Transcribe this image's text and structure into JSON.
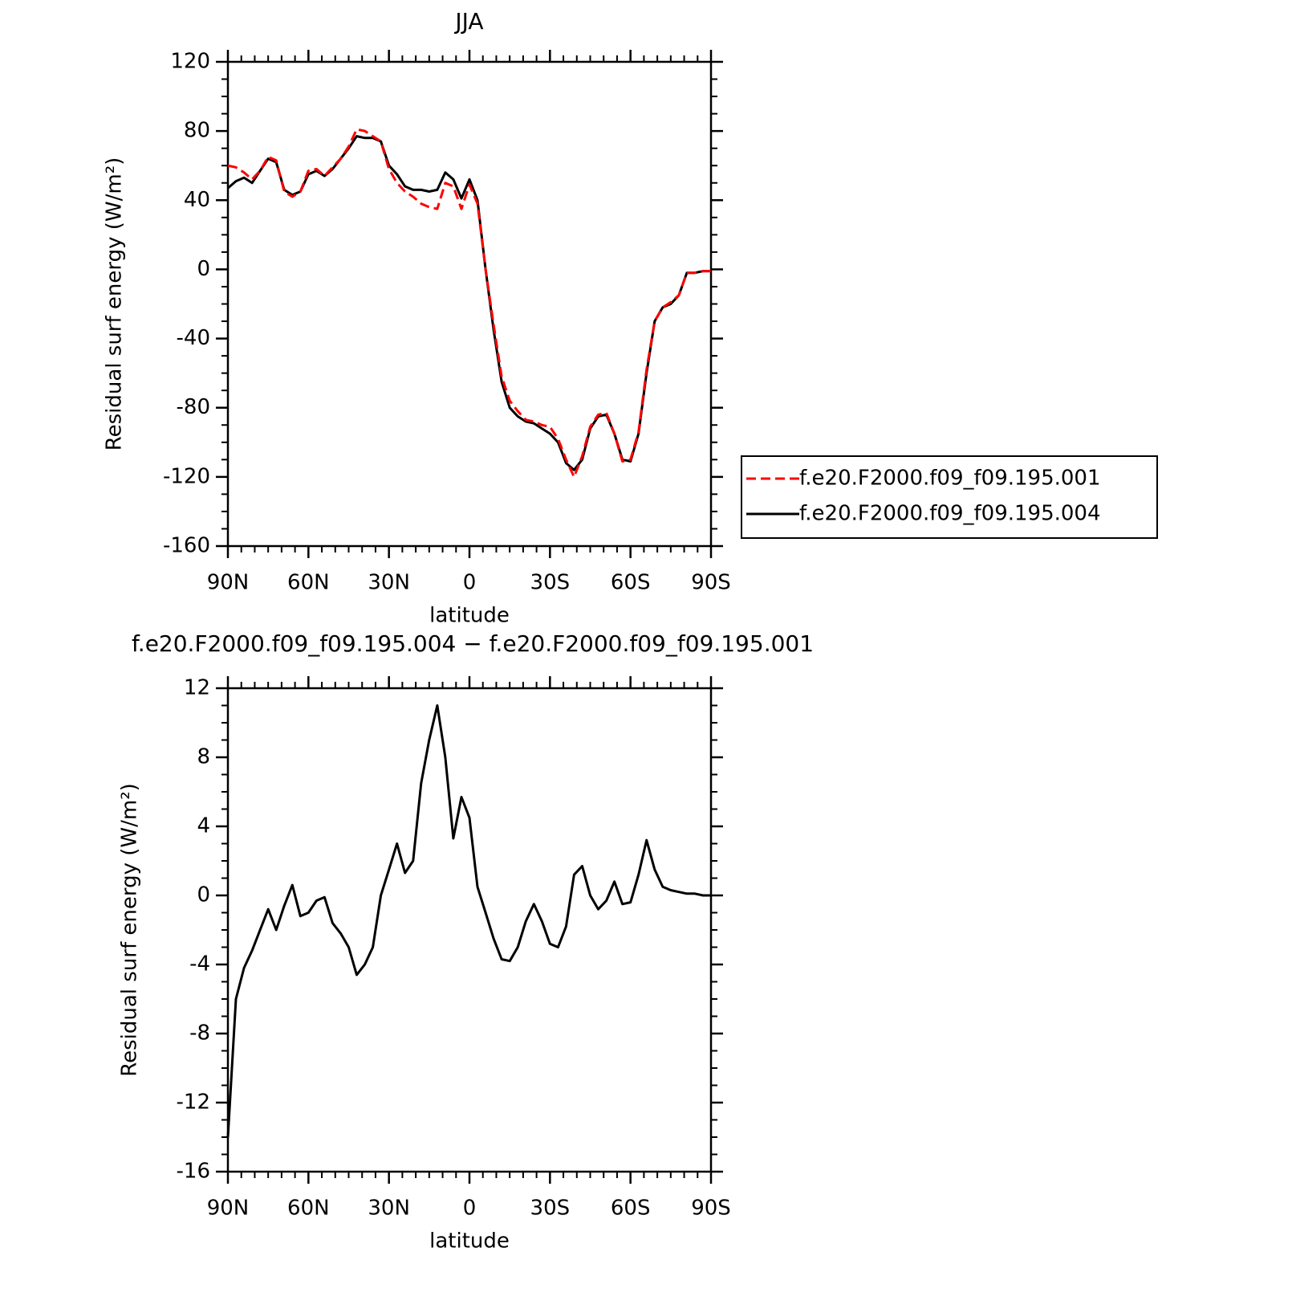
{
  "chart_data": [
    {
      "type": "line",
      "title": "JJA",
      "xlabel": "latitude",
      "ylabel": "Residual surf energy (W/m²)",
      "x": [
        90,
        87,
        84,
        81,
        78,
        75,
        72,
        69,
        66,
        63,
        60,
        57,
        54,
        51,
        48,
        45,
        42,
        39,
        36,
        33,
        30,
        27,
        24,
        21,
        18,
        15,
        12,
        9,
        6,
        3,
        0,
        -3,
        -6,
        -9,
        -12,
        -15,
        -18,
        -21,
        -24,
        -27,
        -30,
        -33,
        -36,
        -39,
        -42,
        -45,
        -48,
        -51,
        -54,
        -57,
        -60,
        -63,
        -66,
        -69,
        -72,
        -75,
        -78,
        -81,
        -84,
        -87,
        -90
      ],
      "xlim": [
        90,
        -90
      ],
      "xticks": [
        {
          "value": 90,
          "label": "90N"
        },
        {
          "value": 60,
          "label": "60N"
        },
        {
          "value": 30,
          "label": "30N"
        },
        0,
        {
          "value": -30,
          "label": "30S"
        },
        {
          "value": -60,
          "label": "60S"
        },
        {
          "value": -90,
          "label": "90S"
        }
      ],
      "ylim": [
        -160,
        120
      ],
      "yticks": [
        -160,
        -120,
        -80,
        -40,
        0,
        40,
        80,
        120
      ],
      "legend": "right",
      "series": [
        {
          "name": "f.e20.F2000.f09_f09.195.001",
          "color": "#ff0000",
          "line_style": "dashed",
          "values": [
            60,
            59,
            56,
            52,
            57,
            65,
            63,
            45,
            42,
            45,
            57,
            58,
            54,
            59,
            64,
            71,
            81,
            80,
            77,
            74,
            58,
            50,
            45,
            42,
            38,
            36,
            35,
            50,
            48,
            35,
            49,
            38,
            0,
            -32,
            -62,
            -76,
            -82,
            -87,
            -88,
            -90,
            -91,
            -98,
            -110,
            -120,
            -108,
            -91,
            -84,
            -83,
            -95,
            -111,
            -110,
            -94,
            -58,
            -30,
            -22,
            -19,
            -15,
            -2,
            -2,
            -1,
            -1
          ]
        },
        {
          "name": "f.e20.F2000.f09_f09.195.004",
          "color": "#000000",
          "line_style": "solid",
          "values": [
            47,
            51,
            53,
            50,
            57,
            64,
            62,
            46,
            43,
            45,
            55,
            57,
            54,
            58,
            64,
            70,
            77,
            76,
            76,
            74,
            60,
            55,
            48,
            46,
            46,
            45,
            46,
            56,
            52,
            41,
            52,
            40,
            0,
            -35,
            -65,
            -80,
            -85,
            -88,
            -89,
            -92,
            -95,
            -100,
            -112,
            -116,
            -110,
            -92,
            -85,
            -84,
            -95,
            -110,
            -111,
            -95,
            -60,
            -30,
            -22,
            -20,
            -15,
            -2,
            -2,
            -1,
            -1
          ]
        }
      ]
    },
    {
      "type": "line",
      "title": "f.e20.F2000.f09_f09.195.004 − f.e20.F2000.f09_f09.195.001",
      "xlabel": "latitude",
      "ylabel": "Residual surf energy (W/m²)",
      "x": [
        90,
        87,
        84,
        81,
        78,
        75,
        72,
        69,
        66,
        63,
        60,
        57,
        54,
        51,
        48,
        45,
        42,
        39,
        36,
        33,
        30,
        27,
        24,
        21,
        18,
        15,
        12,
        9,
        6,
        3,
        0,
        -3,
        -6,
        -9,
        -12,
        -15,
        -18,
        -21,
        -24,
        -27,
        -30,
        -33,
        -36,
        -39,
        -42,
        -45,
        -48,
        -51,
        -54,
        -57,
        -60,
        -63,
        -66,
        -69,
        -72,
        -75,
        -78,
        -81,
        -84,
        -87,
        -90
      ],
      "xlim": [
        90,
        -90
      ],
      "xticks": [
        {
          "value": 90,
          "label": "90N"
        },
        {
          "value": 60,
          "label": "60N"
        },
        {
          "value": 30,
          "label": "30N"
        },
        0,
        {
          "value": -30,
          "label": "30S"
        },
        {
          "value": -60,
          "label": "60S"
        },
        {
          "value": -90,
          "label": "90S"
        }
      ],
      "ylim": [
        -16,
        12
      ],
      "yticks": [
        -16,
        -12,
        -8,
        -4,
        0,
        4,
        8,
        12
      ],
      "color": "#000000",
      "values": [
        -14,
        -6,
        -4.2,
        -3.2,
        -2,
        -0.8,
        -2,
        -0.6,
        0.6,
        -1.2,
        -1,
        -0.3,
        -0.1,
        -1.6,
        -2.2,
        -3,
        -4.6,
        -4,
        -3,
        0,
        1.5,
        3,
        1.3,
        2,
        6.5,
        9,
        11,
        8,
        3.3,
        5.7,
        4.5,
        0.5,
        -1,
        -2.5,
        -3.7,
        -3.8,
        -3,
        -1.5,
        -0.5,
        -1.5,
        -2.8,
        -3,
        -1.8,
        1.2,
        1.7,
        0,
        -0.8,
        -0.3,
        0.8,
        -0.5,
        -0.4,
        1.2,
        3.2,
        1.5,
        0.5,
        0.3,
        0.2,
        0.1,
        0.1,
        0,
        0
      ]
    }
  ]
}
